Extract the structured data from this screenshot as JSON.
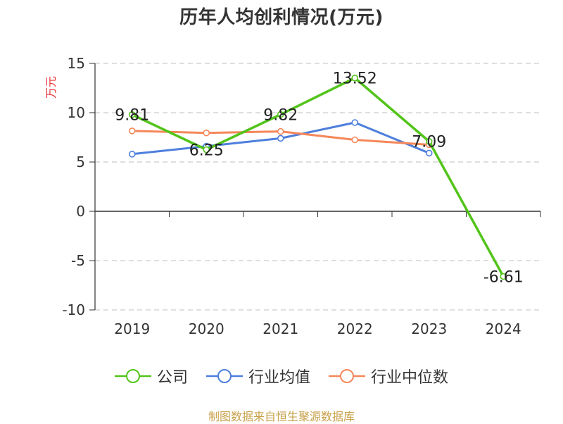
{
  "chart_data": {
    "type": "line",
    "title": "历年人均创利情况(万元)",
    "ylabel": "万元",
    "xlabel": "",
    "categories": [
      "2019",
      "2020",
      "2021",
      "2022",
      "2023",
      "2024"
    ],
    "ylim": [
      -10,
      15
    ],
    "yticks": [
      "15",
      "10",
      "5",
      "0",
      "-5",
      "-10"
    ],
    "grid": true,
    "legend_position": "bottom",
    "series": [
      {
        "name": "公司",
        "color": "#52c41a",
        "values": [
          9.81,
          6.25,
          9.82,
          13.52,
          7.09,
          -6.61
        ],
        "labels": [
          "9.81",
          "6.25",
          "9.82",
          "13.52",
          "7.09",
          "-6.61"
        ]
      },
      {
        "name": "行业均值",
        "color": "#4e7fdc",
        "values": [
          5.8,
          6.6,
          7.4,
          9.0,
          5.9,
          null
        ]
      },
      {
        "name": "行业中位数",
        "color": "#f5875a",
        "values": [
          8.15,
          7.95,
          8.1,
          7.25,
          6.75,
          null
        ]
      }
    ]
  },
  "source": "制图数据来自恒生聚源数据库",
  "colors": {
    "ylabel": "#e8343a",
    "source": "#c8a14a",
    "grid": "#cccccc",
    "axis": "#333333"
  }
}
